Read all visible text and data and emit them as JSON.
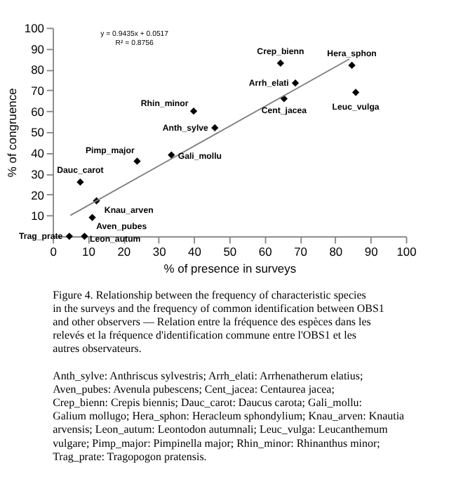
{
  "chart_data": {
    "type": "scatter",
    "xlabel": "% of presence in surveys",
    "ylabel": "% of congruence",
    "xlim": [
      0,
      100
    ],
    "xticks": [
      0,
      10,
      20,
      30,
      40,
      50,
      60,
      70,
      80,
      90,
      100
    ],
    "ylim": [
      0,
      100
    ],
    "yticks": [
      10,
      20,
      30,
      40,
      50,
      60,
      70,
      80,
      90,
      100
    ],
    "grid": false,
    "series": [
      {
        "color": "#000000",
        "marker": "diamond",
        "x": [
          64.5,
          84.7,
          68.7,
          65.5,
          85.8,
          39.9,
          45.9,
          33.6,
          23.9,
          7.8,
          12.4,
          11.2,
          4.7,
          9
        ],
        "values": [
          83,
          82,
          73.5,
          66,
          69,
          60,
          52,
          39,
          36,
          26,
          17,
          9,
          0,
          0
        ]
      },
      {
        "type": "line",
        "color": "#808080",
        "x": [
          5,
          84
        ],
        "values": [
          10,
          85
        ]
      }
    ],
    "annotations": [
      {
        "text": "Crep_bienn",
        "x": 64.5,
        "y": 83
      },
      {
        "text": "Hera_sphon",
        "x": 84.7,
        "y": 82
      },
      {
        "text": "Arrh_elati",
        "x": 68.7,
        "y": 73.5
      },
      {
        "text": "Cent_jacea",
        "x": 65.5,
        "y": 66
      },
      {
        "text": "Leuc_vulga",
        "x": 85.8,
        "y": 69
      },
      {
        "text": "Rhin_minor",
        "x": 39.9,
        "y": 60
      },
      {
        "text": "Anth_sylve",
        "x": 45.9,
        "y": 52
      },
      {
        "text": "Gali_mollu",
        "x": 33.6,
        "y": 39
      },
      {
        "text": "Pimp_major",
        "x": 23.9,
        "y": 36
      },
      {
        "text": "Dauc_carot",
        "x": 7.8,
        "y": 26
      },
      {
        "text": "Knau_arven",
        "x": 12.4,
        "y": 17
      },
      {
        "text": "Aven_pubes",
        "x": 11.2,
        "y": 9
      },
      {
        "text": "Trag_prate",
        "x": 4.7,
        "y": 0
      },
      {
        "text": "Leon_autum",
        "x": 9,
        "y": 0
      },
      "y = 0.9435x + 0.0517",
      "R² = 0.8756",
      "Figure 4. Relationship between the frequency of characteristic species in the surveys and the frequency of common identification between OBS1 and other observers — Relation entre la fréquence des espèces dans les relevés et la fréquence d'identification commune entre l'OBS1 et les autres observateurs.",
      "Anth_sylve: Anthriscus sylvestris; Arrh_elati: Arrhenatherum elatius; Aven_pubes: Avenula pubescens; Cent_jacea: Centaurea jacea; Crep_bienn: Crepis biennis; Dauc_carot: Daucus carota; Gali_mollu: Galium mollugo; Hera_sphon: Heracleum sphondylium; Knau_arven: Knautia arvensis; Leon_autum: Leontodon autumnali; Leuc_vulga: Leucanthemum vulgare; Pimp_major: Pimpinella major; Rhin_minor: Rhinanthus minor; Trag_prate: Tragopogon pratensis."
    ]
  }
}
